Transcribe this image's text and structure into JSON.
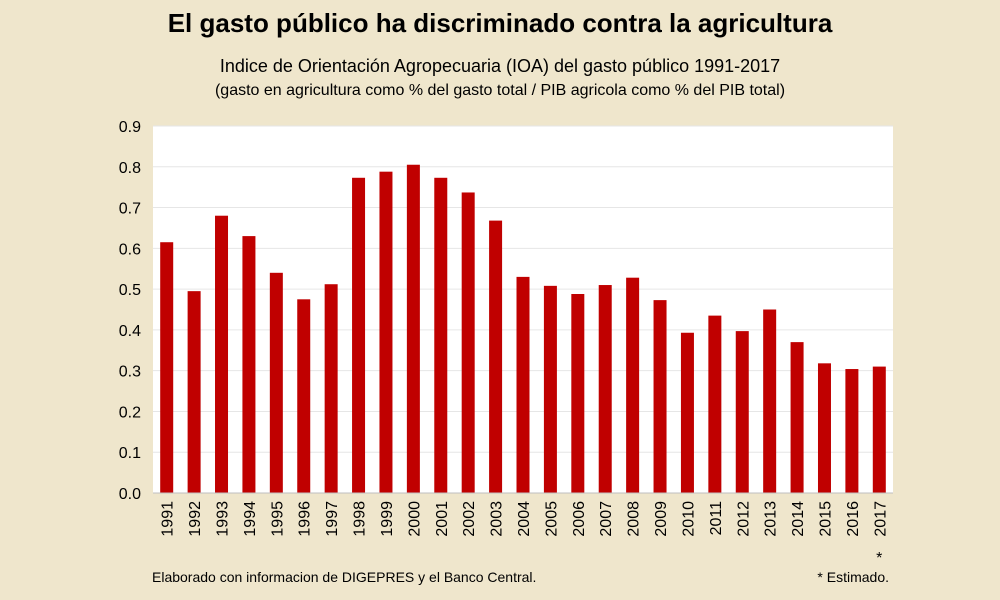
{
  "chart_data": {
    "type": "bar",
    "title": "El gasto público ha discriminado contra la agricultura",
    "subtitle": "Indice de Orientación Agropecuaria (IOA) del gasto público 1991-2017",
    "subtitle2": "(gasto en agricultura como % del gasto total / PIB agricola como % del PIB total)",
    "categories": [
      "1991",
      "1992",
      "1993",
      "1994",
      "1995",
      "1996",
      "1997",
      "1998",
      "1999",
      "2000",
      "2001",
      "2002",
      "2003",
      "2004",
      "2005",
      "2006",
      "2007",
      "2008",
      "2009",
      "2010",
      "2011",
      "2012",
      "2013",
      "2014",
      "2015",
      "2016",
      "2017"
    ],
    "values": [
      0.615,
      0.495,
      0.68,
      0.63,
      0.54,
      0.475,
      0.512,
      0.773,
      0.788,
      0.805,
      0.773,
      0.737,
      0.668,
      0.53,
      0.508,
      0.488,
      0.51,
      0.528,
      0.473,
      0.393,
      0.435,
      0.397,
      0.45,
      0.37,
      0.318,
      0.304,
      0.31
    ],
    "ylim": [
      0,
      0.9
    ],
    "yticks": [
      "0.0",
      "0.1",
      "0.2",
      "0.3",
      "0.4",
      "0.5",
      "0.6",
      "0.7",
      "0.8",
      "0.9"
    ],
    "grid": true,
    "bar_color": "#c00000",
    "estimated_marker": "*",
    "estimated_category": "2017",
    "xlabel": "",
    "ylabel": ""
  },
  "footer": {
    "source": "Elaborado con informacion de DIGEPRES y el Banco Central.",
    "note": "* Estimado."
  }
}
